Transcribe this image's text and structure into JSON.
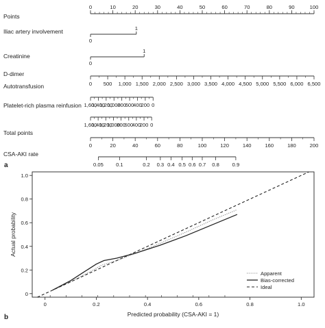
{
  "panels": {
    "a_label": "a",
    "b_label": "b"
  },
  "chart_data": [
    {
      "type": "table",
      "kind": "nomogram",
      "rows": [
        {
          "name": "Points",
          "ticks": [
            "0",
            "10",
            "20",
            "30",
            "40",
            "50",
            "60",
            "70",
            "80",
            "90",
            "100"
          ],
          "tick_points": [
            0,
            10,
            20,
            30,
            40,
            50,
            60,
            70,
            80,
            90,
            100
          ],
          "minor_step": 2
        },
        {
          "name": "Iliac artery involvement",
          "ticks": [
            "0",
            "1"
          ],
          "tick_points": [
            0,
            20.5
          ],
          "style": "categorical"
        },
        {
          "name": "Creatinine",
          "ticks": [
            "0",
            "1"
          ],
          "tick_points": [
            0,
            24
          ],
          "style": "categorical"
        },
        {
          "name": "D-dimer",
          "ticks": [
            "0",
            "500",
            "1,000",
            "1,500",
            "2,000",
            "2,500",
            "3,000",
            "3,500",
            "4,000",
            "4,500",
            "5,000",
            "5,500",
            "6,000",
            "6,500"
          ],
          "tick_points": [
            0,
            7.69,
            15.38,
            23.08,
            30.77,
            38.46,
            46.15,
            53.85,
            61.54,
            69.23,
            76.92,
            84.62,
            92.31,
            100
          ],
          "minor_count": 1
        },
        {
          "name": "Autotransfusion",
          "ticks": [
            "1,600",
            "1,400",
            "1,200",
            "1,000",
            "800",
            "600",
            "400",
            "200",
            "0"
          ],
          "tick_points": [
            0,
            3.5,
            7,
            10.5,
            14,
            17.5,
            21,
            24.5,
            28
          ],
          "minor_count": 1
        },
        {
          "name": "Platelet-rich plasma reinfusion",
          "ticks": [
            "1,600",
            "1,400",
            "1,200",
            "1,000",
            "800",
            "600",
            "400",
            "200",
            "0"
          ],
          "tick_points": [
            0,
            3.42,
            6.84,
            10.26,
            13.68,
            17.1,
            20.52,
            23.94,
            27.36
          ],
          "minor_count": 1
        },
        {
          "name": "Total points",
          "ticks": [
            "0",
            "20",
            "40",
            "60",
            "80",
            "100",
            "120",
            "140",
            "160",
            "180",
            "200"
          ],
          "tick_points": [
            0,
            10,
            20,
            30,
            40,
            50,
            60,
            70,
            80,
            90,
            100
          ],
          "minor_count": 1
        },
        {
          "name": "CSA-AKI rate",
          "ticks": [
            "0.05",
            "0.1",
            "0.2",
            "0.3",
            "0.4",
            "0.5",
            "0.6",
            "0.7",
            "0.8",
            "0.9"
          ],
          "total_points": [
            7,
            26,
            50,
            62.5,
            72,
            82,
            91,
            100,
            112,
            130
          ]
        }
      ]
    },
    {
      "type": "line",
      "xlabel": "Predicted probability (CSA-AKI = 1)",
      "ylabel": "Actual probability",
      "xlim": [
        -0.05,
        1.05
      ],
      "ylim": [
        -0.03,
        1.03
      ],
      "x_ticks": [
        0,
        0.2,
        0.4,
        0.6,
        0.8,
        1.0
      ],
      "x_tick_labels": [
        "0",
        "0.2",
        "0.4",
        "0.6",
        "0.8",
        "1.0"
      ],
      "y_ticks": [
        0,
        0.2,
        0.4,
        0.6,
        0.8,
        1.0
      ],
      "y_tick_labels": [
        "0",
        "0.2",
        "0.4",
        "0.6",
        "0.8",
        "1.0"
      ],
      "legend": "bottom-right",
      "series": [
        {
          "name": "Apparent",
          "color": "#888888",
          "dash": "dotted",
          "x": [
            0.03,
            0.1,
            0.18,
            0.22,
            0.28,
            0.4,
            0.55,
            0.65,
            0.75
          ],
          "y": [
            0.03,
            0.1,
            0.19,
            0.24,
            0.28,
            0.38,
            0.52,
            0.62,
            0.71
          ]
        },
        {
          "name": "Bias-corrected",
          "color": "#222222",
          "dash": "solid",
          "x": [
            0.03,
            0.1,
            0.15,
            0.2,
            0.23,
            0.28,
            0.35,
            0.45,
            0.55,
            0.65,
            0.75
          ],
          "y": [
            0.03,
            0.11,
            0.18,
            0.25,
            0.28,
            0.3,
            0.34,
            0.41,
            0.49,
            0.58,
            0.67
          ]
        },
        {
          "name": "Ideal",
          "color": "#222222",
          "dash": "dashed",
          "x": [
            -0.03,
            1.03
          ],
          "y": [
            -0.03,
            1.03
          ]
        }
      ]
    }
  ]
}
